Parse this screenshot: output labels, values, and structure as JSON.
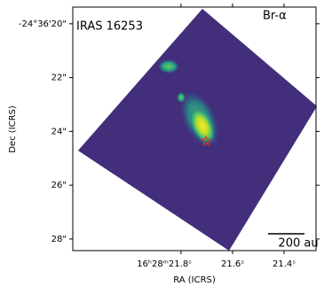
{
  "chart_data": {
    "type": "image",
    "title": "IRAS 16253",
    "subtitle": "Br-α",
    "annotations": [
      "200 au"
    ],
    "x_label": "RA (ICRS)",
    "y_label": "Dec (ICRS)",
    "xlim": [
      22.22,
      21.276
    ],
    "ylim": [
      28.43,
      19.38
    ],
    "xticks": [
      {
        "value": 21.8,
        "label": "16ʰ28ᵐ21.8ˢ"
      },
      {
        "value": 21.6,
        "label": "21.6ˢ"
      },
      {
        "value": 21.4,
        "label": "21.4ˢ"
      }
    ],
    "yticks": [
      {
        "value": 20,
        "label": "-24°36'20\""
      },
      {
        "value": 22,
        "label": "22\""
      },
      {
        "value": 24,
        "label": "24\""
      },
      {
        "value": 26,
        "label": "26\""
      },
      {
        "value": 28,
        "label": "28\""
      }
    ]
  }
}
